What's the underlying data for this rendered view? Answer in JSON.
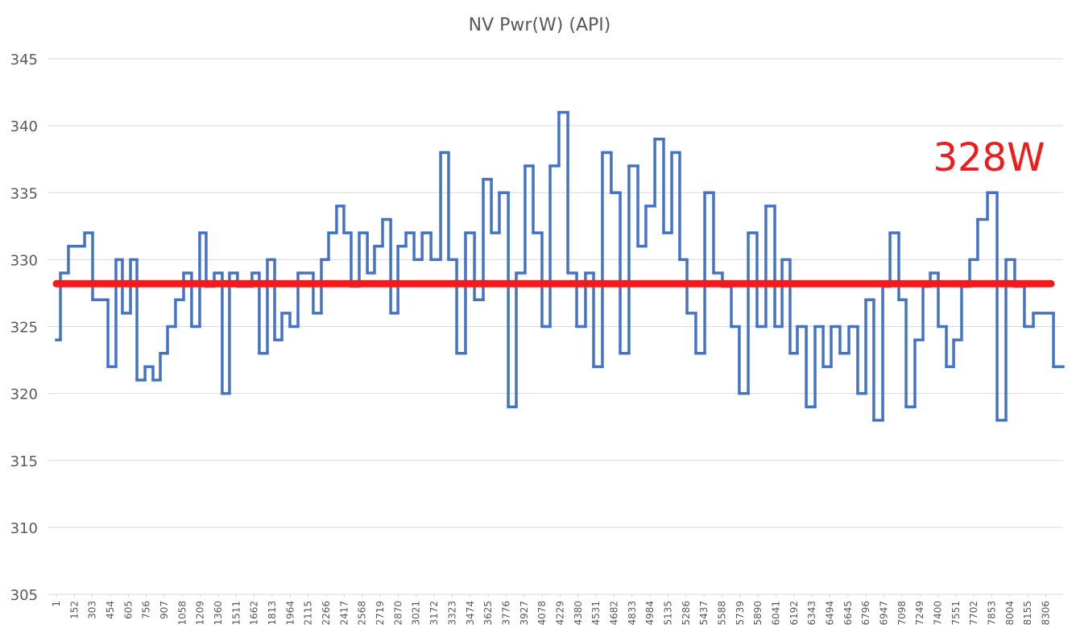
{
  "chart_data": {
    "type": "line",
    "step": "post",
    "title": "NV Pwr(W) (API)",
    "xlim": [
      1,
      8451
    ],
    "xticks": [
      1,
      152,
      303,
      454,
      605,
      756,
      907,
      1058,
      1209,
      1360,
      1511,
      1662,
      1813,
      1964,
      2115,
      2266,
      2417,
      2568,
      2719,
      2870,
      3021,
      3172,
      3323,
      3474,
      3625,
      3776,
      3927,
      4078,
      4229,
      4380,
      4531,
      4682,
      4833,
      4984,
      5135,
      5286,
      5437,
      5588,
      5739,
      5890,
      6041,
      6192,
      6343,
      6494,
      6645,
      6796,
      6947,
      7098,
      7249,
      7400,
      7551,
      7702,
      7853,
      8004,
      8155,
      8306
    ],
    "ylim": [
      305,
      345
    ],
    "yticks": [
      305,
      310,
      315,
      320,
      325,
      330,
      335,
      340,
      345
    ],
    "grid": true,
    "series": [
      {
        "color": "#4472c4",
        "x": [
          1,
          35,
          102,
          238,
          305,
          434,
          501,
          555,
          623,
          677,
          745,
          812,
          873,
          934,
          1001,
          1069,
          1136,
          1204,
          1258,
          1326,
          1393,
          1454,
          1521,
          1643,
          1704,
          1772,
          1833,
          1894,
          1961,
          2029,
          2157,
          2225,
          2286,
          2353,
          2414,
          2475,
          2543,
          2611,
          2671,
          2739,
          2807,
          2868,
          2935,
          3003,
          3071,
          3145,
          3226,
          3293,
          3361,
          3435,
          3510,
          3584,
          3652,
          3719,
          3794,
          3861,
          3935,
          4003,
          4077,
          4145,
          4219,
          4294,
          4368,
          4442,
          4510,
          4584,
          4658,
          4733,
          4807,
          4882,
          4949,
          5024,
          5098,
          5166,
          5233,
          5294,
          5368,
          5443,
          5517,
          5591,
          5666,
          5733,
          5808,
          5882,
          5956,
          6031,
          6092,
          6159,
          6220,
          6295,
          6369,
          6437,
          6504,
          6578,
          6653,
          6727,
          6795,
          6862,
          6937,
          6998,
          7072,
          7133,
          7207,
          7275,
          7336,
          7403,
          7471,
          7532,
          7599,
          7667,
          7734,
          7816,
          7897,
          7971,
          8045,
          8126,
          8201,
          8370
        ],
        "values": [
          324,
          329,
          331,
          332,
          327,
          322,
          330,
          326,
          330,
          321,
          322,
          321,
          323,
          325,
          327,
          329,
          325,
          332,
          328,
          329,
          320,
          329,
          328,
          329,
          323,
          330,
          324,
          326,
          325,
          329,
          326,
          330,
          332,
          334,
          332,
          328,
          332,
          329,
          331,
          333,
          326,
          331,
          332,
          330,
          332,
          330,
          338,
          330,
          323,
          332,
          327,
          336,
          332,
          335,
          319,
          329,
          337,
          332,
          325,
          337,
          341,
          329,
          325,
          329,
          322,
          338,
          335,
          323,
          337,
          331,
          334,
          339,
          332,
          338,
          330,
          326,
          323,
          335,
          329,
          328,
          325,
          320,
          332,
          325,
          334,
          325,
          330,
          323,
          325,
          319,
          325,
          322,
          325,
          323,
          325,
          320,
          327,
          318,
          328,
          332,
          327,
          319,
          324,
          328,
          329,
          325,
          322,
          324,
          328,
          330,
          333,
          335,
          318,
          330,
          328,
          325,
          326,
          322
        ]
      }
    ],
    "average": {
      "value": 328.2,
      "label": "328W",
      "color": "#ee1c1c"
    }
  }
}
